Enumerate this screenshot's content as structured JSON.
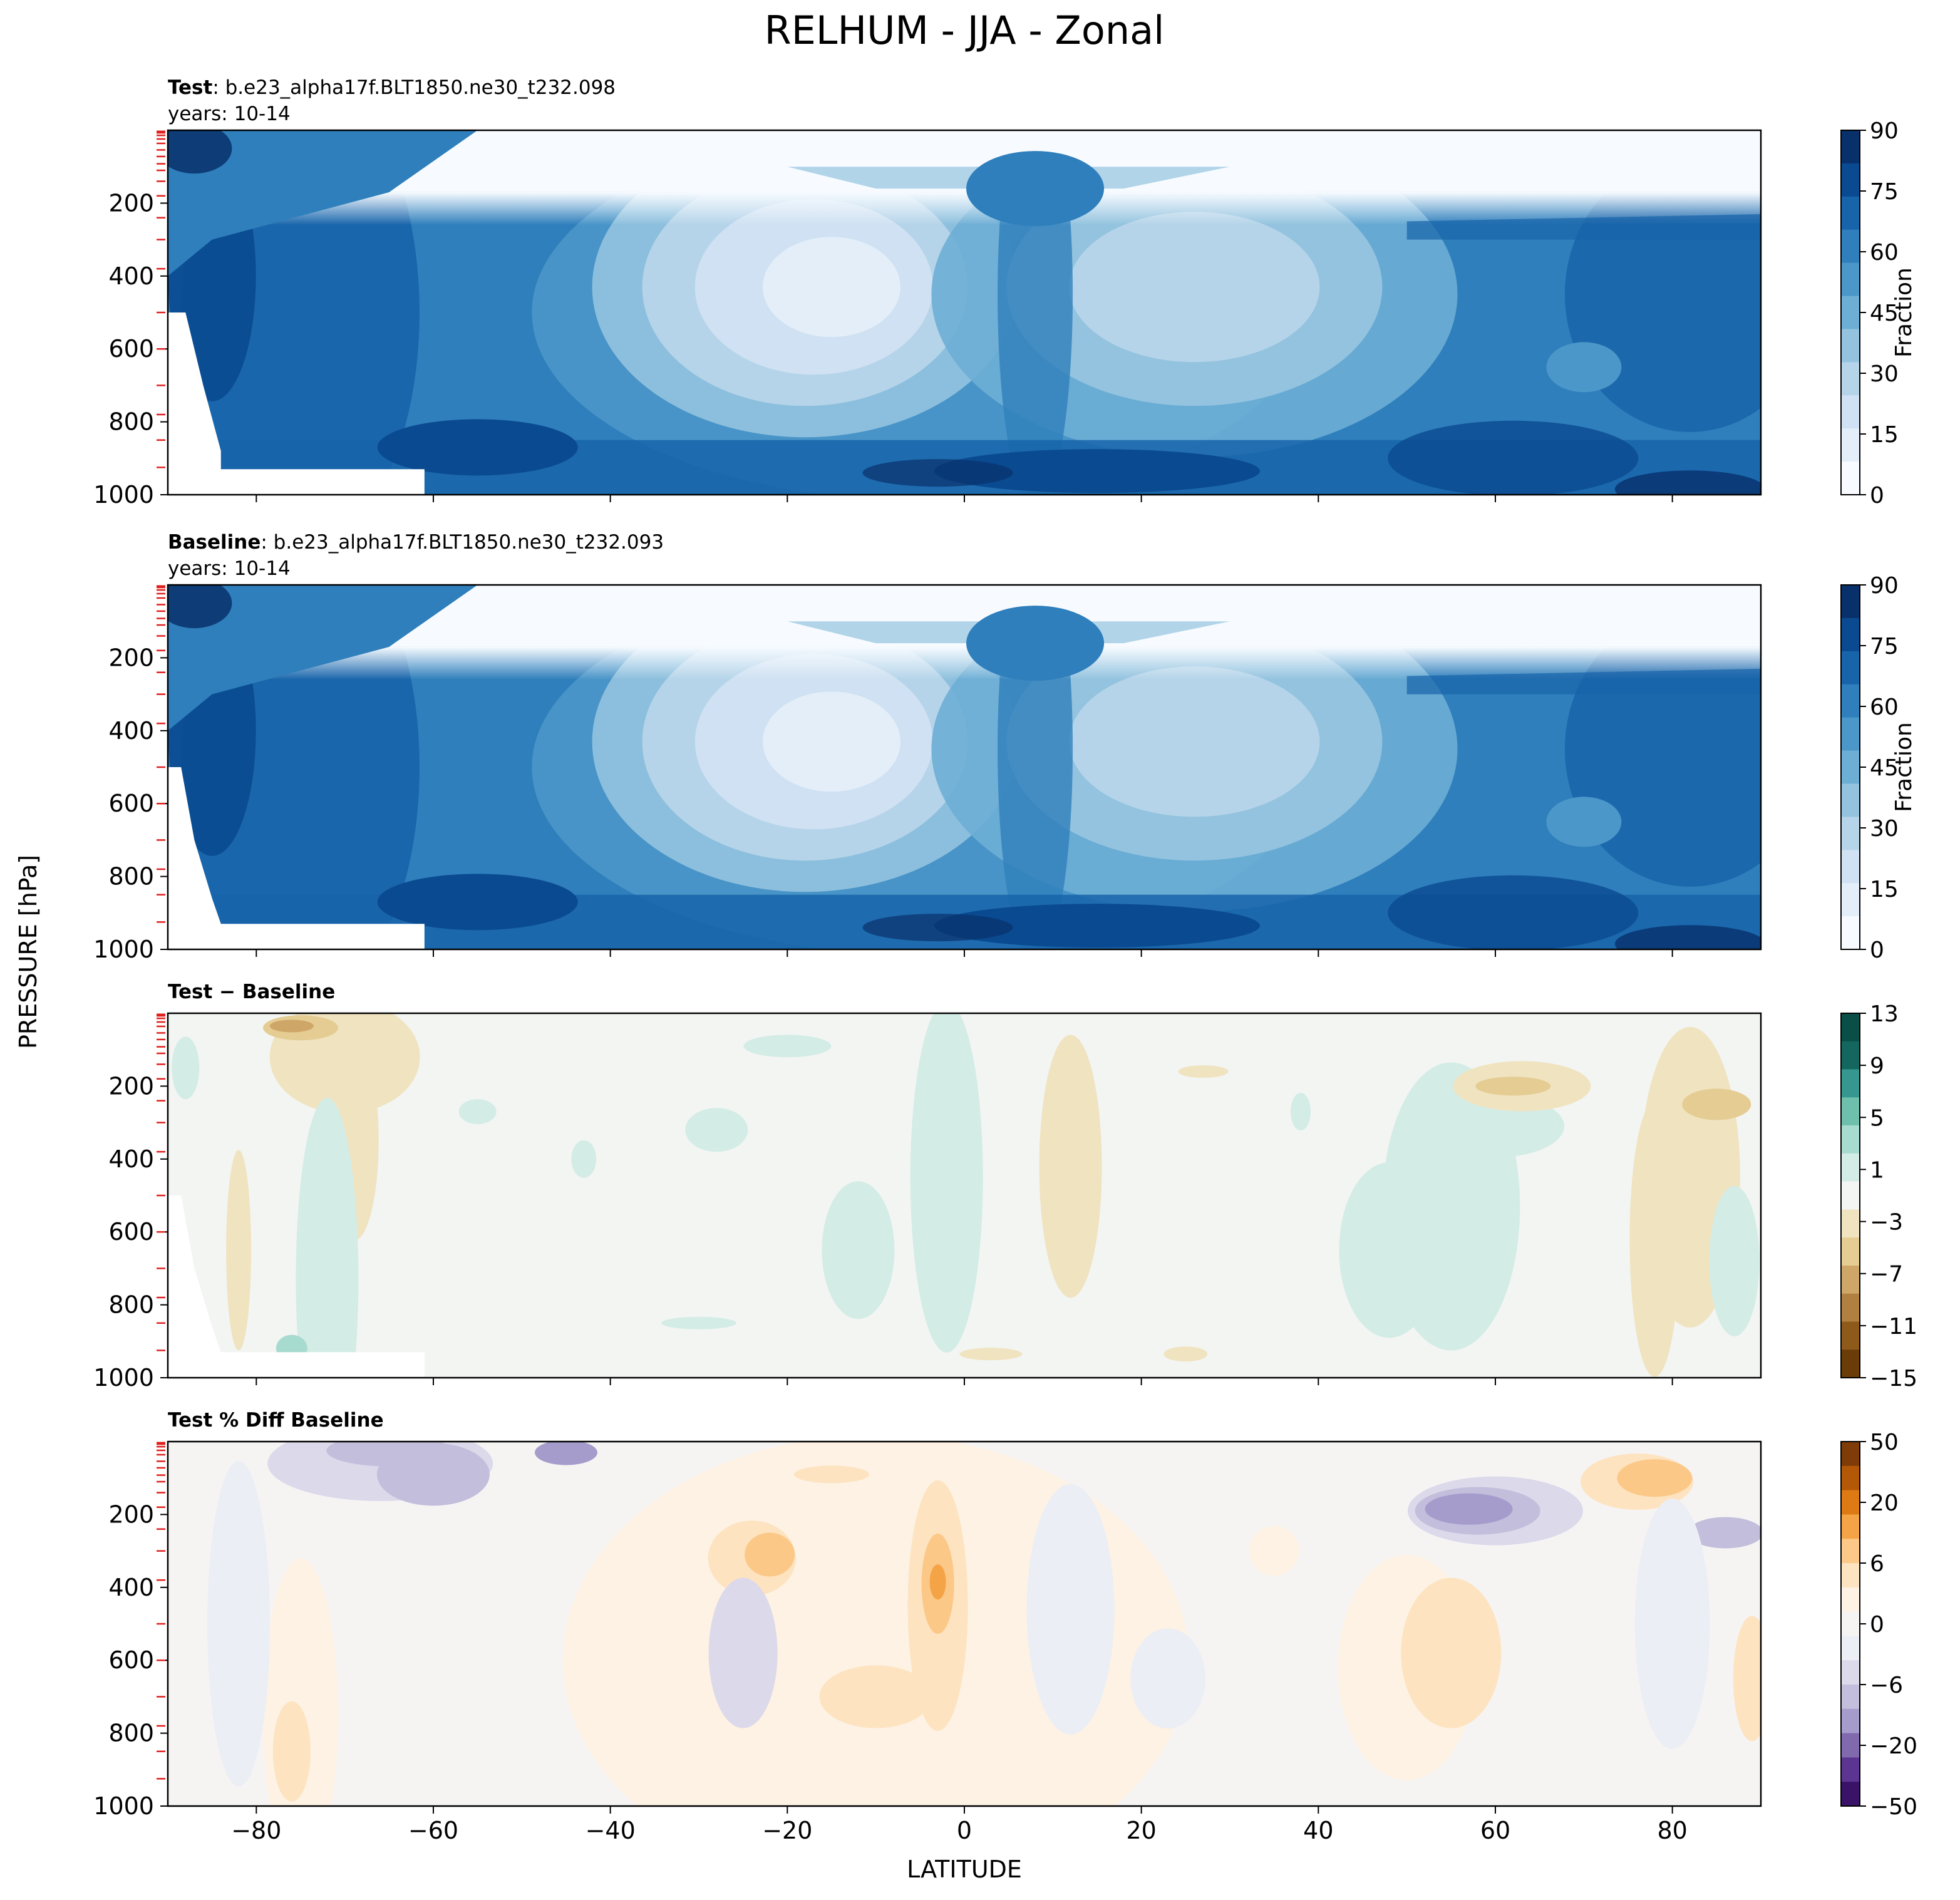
{
  "figure": {
    "title": "RELHUM - JJA - Zonal",
    "ylabel": "PRESSURE [hPa]",
    "xlabel": "LATITUDE"
  },
  "chart_data": [
    {
      "type": "heatmap",
      "panel": "test",
      "title_bold": "Test",
      "title_rest": ": b.e23_alpha17f.BLT1850.ne30_t232.098",
      "subtitle": "years: 10-14",
      "colorscale": "Blues",
      "xlim": [
        -90,
        90
      ],
      "ylim": [
        1000,
        0
      ],
      "x_ticks": [
        -80,
        -60,
        -40,
        -20,
        0,
        20,
        40,
        60,
        80
      ],
      "y_ticks": [
        "200",
        "400",
        "600",
        "800",
        "1000"
      ],
      "colorbar": {
        "label": "Fraction",
        "ticks": [
          "90",
          "75",
          "60",
          "45",
          "30",
          "15",
          "0"
        ],
        "range": [
          0,
          100
        ]
      },
      "field_description": "High relative humidity (80-100) near surface and polar troposphere; dry upper levels above ~200 hPa; minima ~20 near 20S and ~35 near 25N at 400-600 hPa"
    },
    {
      "type": "heatmap",
      "panel": "baseline",
      "title_bold": "Baseline",
      "title_rest": ": b.e23_alpha17f.BLT1850.ne30_t232.093",
      "subtitle": "years: 10-14",
      "colorscale": "Blues",
      "xlim": [
        -90,
        90
      ],
      "ylim": [
        1000,
        0
      ],
      "x_ticks": [
        -80,
        -60,
        -40,
        -20,
        0,
        20,
        40,
        60,
        80
      ],
      "y_ticks": [
        "200",
        "400",
        "600",
        "800",
        "1000"
      ],
      "colorbar": {
        "label": "Fraction",
        "ticks": [
          "90",
          "75",
          "60",
          "45",
          "30",
          "15",
          "0"
        ],
        "range": [
          0,
          100
        ]
      }
    },
    {
      "type": "heatmap",
      "panel": "difference",
      "title_bold": "Test − Baseline",
      "colorscale": "BrBG",
      "xlim": [
        -90,
        90
      ],
      "ylim": [
        1000,
        0
      ],
      "x_ticks": [
        -80,
        -60,
        -40,
        -20,
        0,
        20,
        40,
        60,
        80
      ],
      "y_ticks": [
        "200",
        "400",
        "600",
        "800",
        "1000"
      ],
      "colorbar": {
        "label": "",
        "ticks": [
          "13",
          "9",
          "5",
          "1",
          "−3",
          "−7",
          "−11",
          "−15"
        ],
        "range": [
          -15,
          13
        ]
      }
    },
    {
      "type": "heatmap",
      "panel": "percent_difference",
      "title_bold": "Test % Diff Baseline",
      "colorscale": "PuOr",
      "xlim": [
        -90,
        90
      ],
      "ylim": [
        1000,
        0
      ],
      "x_ticks": [
        -80,
        -60,
        -40,
        -20,
        0,
        20,
        40,
        60,
        80
      ],
      "x_tick_labels": [
        "−80",
        "−60",
        "−40",
        "−20",
        "0",
        "20",
        "40",
        "60",
        "80"
      ],
      "y_ticks": [
        "200",
        "400",
        "600",
        "800",
        "1000"
      ],
      "colorbar": {
        "label": "",
        "ticks": [
          "50",
          "20",
          "6",
          "0",
          "−6",
          "−20",
          "−50"
        ],
        "range": [
          -70,
          70
        ]
      }
    }
  ],
  "colors": {
    "blues": [
      "#f7fbff",
      "#e3eef9",
      "#cfe1f2",
      "#b5d4e9",
      "#93c3df",
      "#6daed5",
      "#4b97c9",
      "#2f7fbc",
      "#1864aa",
      "#0a4a90",
      "#08306b"
    ],
    "brbg_neg": [
      "#f0e3c0",
      "#e4cc92",
      "#cea668",
      "#b08040",
      "#8d5a1a",
      "#6a3c08"
    ],
    "brbg_pos": [
      "#d4ece6",
      "#a8dbd0",
      "#6fbfad",
      "#35978f",
      "#13675f",
      "#0a4f47"
    ],
    "brbg_mid": "#f3f5f3",
    "puor_neg": [
      "#eceef5",
      "#dcd9ea",
      "#c2bedc",
      "#a59ccb",
      "#8069ad",
      "#5b3591",
      "#3a1267"
    ],
    "puor_pos": [
      "#fdf2e4",
      "#fde3c0",
      "#fcc888",
      "#f4a446",
      "#dd7a14",
      "#b35806",
      "#7f3b08"
    ],
    "puor_mid": "#f6f4f3",
    "tick_red": "#e0201e"
  }
}
